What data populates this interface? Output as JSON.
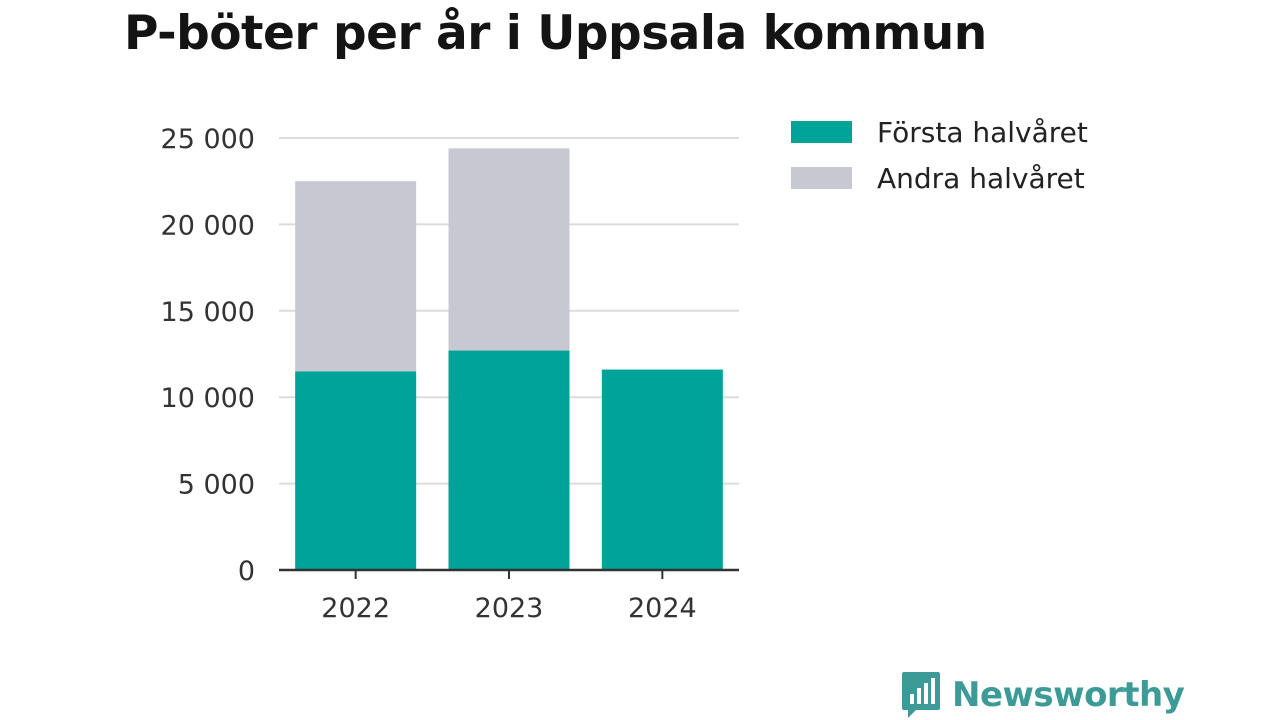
{
  "header": {
    "title": "P-böter per år i Uppsala kommun"
  },
  "chart_data": {
    "type": "bar",
    "stacked": true,
    "title": "P-böter per år i Uppsala kommun",
    "xlabel": "",
    "ylabel": "",
    "categories": [
      "2022",
      "2023",
      "2024"
    ],
    "series": [
      {
        "name": "Första halvåret",
        "color": "#00a398",
        "values": [
          11500,
          12700,
          11600
        ]
      },
      {
        "name": "Andra halvåret",
        "color": "#c8c8d3",
        "values": [
          11000,
          11700,
          null
        ]
      }
    ],
    "ylim": [
      0,
      25000
    ],
    "yticks": [
      0,
      5000,
      10000,
      15000,
      20000,
      25000
    ],
    "ytick_labels": [
      "0",
      "5 000",
      "10 000",
      "15 000",
      "20 000",
      "25 000"
    ],
    "grid": true,
    "legend_position": "right"
  },
  "brand": {
    "name": "Newsworthy",
    "icon": "bar-chart-speech-bubble-icon",
    "color": "#3d9b97"
  }
}
